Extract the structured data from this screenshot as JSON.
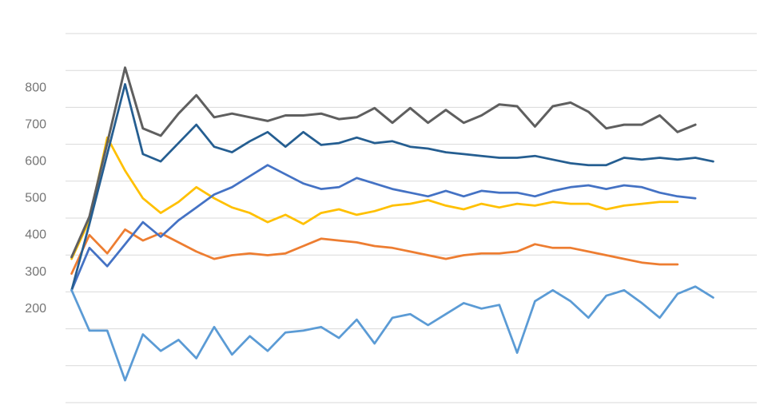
{
  "page": {
    "background_color": "#ffffff"
  },
  "chart_data": {
    "type": "line",
    "title": "",
    "xlabel": "",
    "ylabel": "",
    "legend": "none",
    "x_axis": {
      "tick_labels_visible": false,
      "point_count_max": 37
    },
    "y_axis": {
      "tick_labels": [
        "800",
        "700",
        "600",
        "500",
        "400",
        "300",
        "200"
      ],
      "tick_values": [
        800,
        700,
        600,
        500,
        400,
        300,
        200
      ],
      "label_color": "#757575"
    },
    "grid": {
      "horizontal_line_count": 11,
      "color": "#d9d9d9"
    },
    "series": [
      {
        "name": "gold-series",
        "color": "#FFC000",
        "values": [
          335,
          440,
          665,
          575,
          500,
          460,
          490,
          530,
          500,
          475,
          460,
          435,
          455,
          430,
          460,
          470,
          455,
          465,
          480,
          485,
          495,
          480,
          470,
          485,
          475,
          485,
          480,
          490,
          485,
          485,
          470,
          480,
          485,
          490,
          490
        ]
      },
      {
        "name": "dark-gray-series",
        "color": "#5F5F5F",
        "values": [
          340,
          450,
          650,
          855,
          690,
          670,
          730,
          780,
          720,
          730,
          720,
          710,
          725,
          725,
          730,
          715,
          720,
          745,
          705,
          745,
          705,
          740,
          705,
          725,
          755,
          750,
          695,
          750,
          760,
          735,
          690,
          700,
          700,
          725,
          680,
          700
        ]
      },
      {
        "name": "orange-series",
        "color": "#ED7D31",
        "values": [
          295,
          400,
          350,
          415,
          385,
          405,
          380,
          355,
          335,
          345,
          350,
          345,
          350,
          370,
          390,
          385,
          380,
          370,
          365,
          355,
          345,
          335,
          345,
          350,
          350,
          355,
          375,
          365,
          365,
          355,
          345,
          335,
          325,
          320,
          320
        ]
      },
      {
        "name": "royal-blue-series",
        "color": "#4472C4",
        "values": [
          250,
          365,
          315,
          375,
          435,
          395,
          440,
          475,
          510,
          530,
          560,
          590,
          565,
          540,
          525,
          530,
          555,
          540,
          525,
          515,
          505,
          520,
          505,
          520,
          515,
          515,
          505,
          520,
          530,
          535,
          525,
          535,
          530,
          515,
          505,
          500
        ]
      },
      {
        "name": "dark-blue-series",
        "color": "#255E91",
        "values": [
          250,
          430,
          620,
          810,
          620,
          600,
          650,
          700,
          640,
          625,
          655,
          680,
          640,
          680,
          645,
          650,
          665,
          650,
          655,
          640,
          635,
          625,
          620,
          615,
          610,
          610,
          615,
          605,
          595,
          590,
          590,
          610,
          605,
          610,
          605,
          610,
          600
        ]
      },
      {
        "name": "light-blue-series",
        "color": "#5B9BD5",
        "values": [
          250,
          140,
          140,
          5,
          130,
          85,
          115,
          65,
          150,
          75,
          125,
          85,
          135,
          140,
          150,
          120,
          170,
          105,
          175,
          185,
          155,
          185,
          215,
          200,
          210,
          80,
          220,
          250,
          220,
          175,
          235,
          250,
          215,
          175,
          240,
          260,
          230
        ]
      }
    ]
  }
}
